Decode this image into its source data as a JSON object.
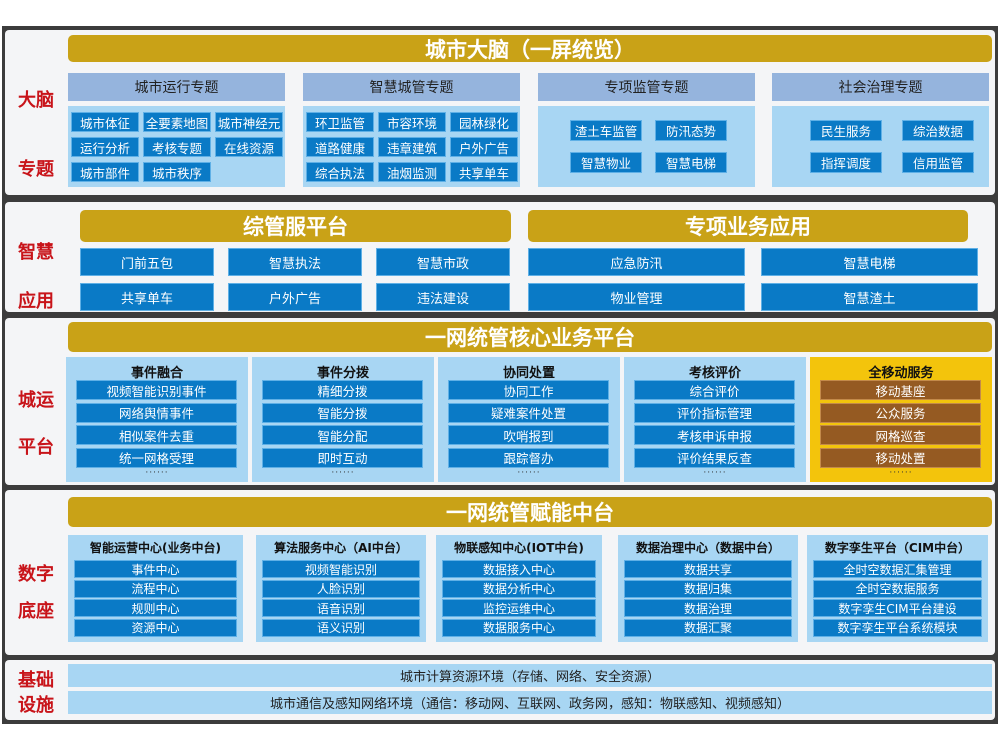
{
  "colors": {
    "gold": "#c9a217",
    "blue_btn": "#0a7ac6",
    "light_blue": "#a8d6f3",
    "group_head": "#95b4dd",
    "side_label": "#c8141a",
    "mobile_bg": "#f3c40c",
    "mobile_btn": "#955a22"
  },
  "brain": {
    "side": [
      "大脑",
      "专题"
    ],
    "title": "城市大脑（一屏统览）",
    "groups": [
      {
        "title": "城市运行专题",
        "items": [
          "城市体征",
          "全要素地图",
          "城市神经元",
          "运行分析",
          "考核专题",
          "在线资源",
          "城市部件",
          "城市秩序"
        ]
      },
      {
        "title": "智慧城管专题",
        "items": [
          "环卫监管",
          "市容环境",
          "园林绿化",
          "道路健康",
          "违章建筑",
          "户外广告",
          "综合执法",
          "油烟监测",
          "共享单车"
        ]
      },
      {
        "title": "专项监管专题",
        "items": [
          "渣土车监管",
          "防汛态势",
          "智慧物业",
          "智慧电梯"
        ]
      },
      {
        "title": "社会治理专题",
        "items": [
          "民生服务",
          "综治数据",
          "指挥调度",
          "信用监管"
        ]
      }
    ]
  },
  "apps": {
    "side": [
      "智慧",
      "应用"
    ],
    "left": {
      "title": "综管服平台",
      "items": [
        "门前五包",
        "智慧执法",
        "智慧市政",
        "共享单车",
        "户外广告",
        "违法建设"
      ]
    },
    "right": {
      "title": "专项业务应用",
      "items": [
        "应急防汛",
        "智慧电梯",
        "物业管理",
        "智慧渣土"
      ]
    }
  },
  "ops": {
    "side": [
      "城运",
      "平台"
    ],
    "title": "一网统管核心业务平台",
    "more": "······",
    "columns": [
      {
        "title": "事件融合",
        "items": [
          "视频智能识别事件",
          "网络舆情事件",
          "相似案件去重",
          "统一网格受理"
        ]
      },
      {
        "title": "事件分拨",
        "items": [
          "精细分拨",
          "智能分拨",
          "智能分配",
          "即时互动"
        ]
      },
      {
        "title": "协同处置",
        "items": [
          "协同工作",
          "疑难案件处置",
          "吹哨报到",
          "跟踪督办"
        ]
      },
      {
        "title": "考核评价",
        "items": [
          "综合评价",
          "评价指标管理",
          "考核申诉申报",
          "评价结果反查"
        ]
      },
      {
        "title": "全移动服务",
        "items": [
          "移动基座",
          "公众服务",
          "网格巡查",
          "移动处置"
        ]
      }
    ]
  },
  "digital": {
    "side": [
      "数字",
      "底座"
    ],
    "title": "一网统管赋能中台",
    "columns": [
      {
        "title": "智能运营中心(业务中台)",
        "items": [
          "事件中心",
          "流程中心",
          "规则中心",
          "资源中心"
        ]
      },
      {
        "title": "算法服务中心（AI中台）",
        "items": [
          "视频智能识别",
          "人脸识别",
          "语音识别",
          "语义识别"
        ]
      },
      {
        "title": "物联感知中心(IOT中台)",
        "items": [
          "数据接入中心",
          "数据分析中心",
          "监控运维中心",
          "数据服务中心"
        ]
      },
      {
        "title": "数据治理中心（数据中台）",
        "items": [
          "数据共享",
          "数据归集",
          "数据治理",
          "数据汇聚"
        ]
      },
      {
        "title": "数字孪生平台（CIM中台）",
        "items": [
          "全时空数据汇集管理",
          "全时空数据服务",
          "数字孪生CIM平台建设",
          "数字孪生平台系统模块"
        ]
      }
    ]
  },
  "infra": {
    "side": [
      "基础",
      "设施"
    ],
    "rows": [
      "城市计算资源环境（存储、网络、安全资源）",
      "城市通信及感知网络环境（通信：移动网、互联网、政务网，感知：物联感知、视频感知）"
    ]
  }
}
